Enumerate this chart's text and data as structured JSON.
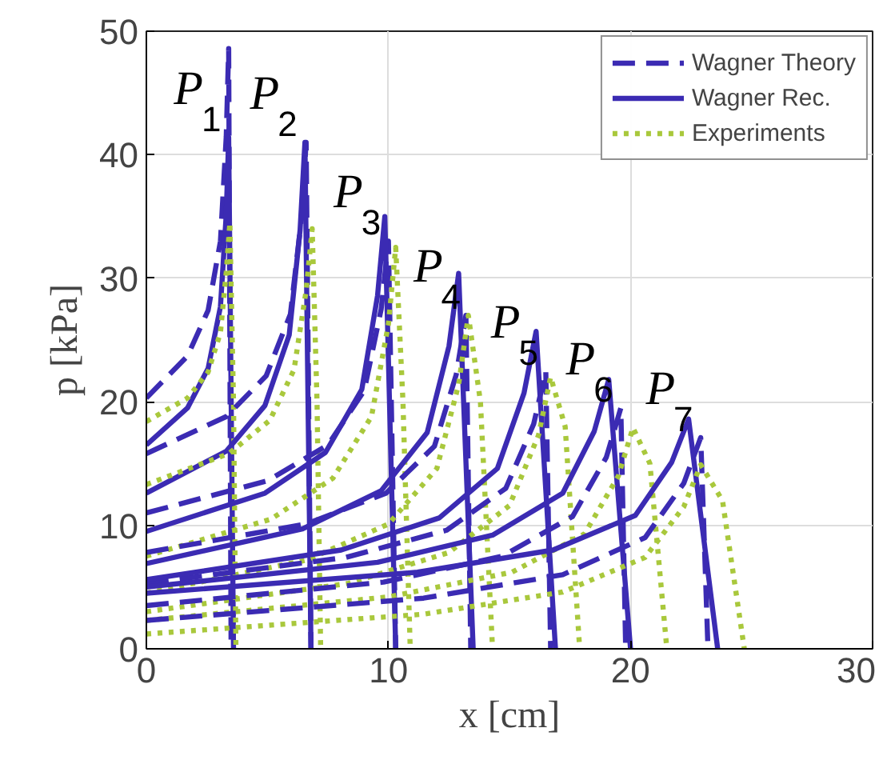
{
  "chart_data": {
    "type": "line",
    "xlabel": "x [cm]",
    "ylabel": "p [kPa]",
    "xlim": [
      0,
      30
    ],
    "ylim": [
      0,
      50
    ],
    "xticks": [
      0,
      10,
      20,
      30
    ],
    "yticks": [
      0,
      10,
      20,
      30,
      40,
      50
    ],
    "grid": true,
    "legend": "top right",
    "series": [
      {
        "name": "Wagner Theory",
        "color": "#3b2bb3",
        "line_style": "dashed",
        "x": [
          0,
          1.7,
          2.55,
          3.06,
          3.3,
          3.4,
          3.5
        ],
        "values": [
          20.3,
          23.7,
          27.4,
          33.0,
          41.5,
          48.6,
          0
        ]
      },
      {
        "name": "Wagner Rec.",
        "color": "#3b2bb3",
        "line_style": "solid",
        "x": [
          0,
          1.7,
          2.55,
          3.06,
          3.3,
          3.4,
          3.6
        ],
        "values": [
          16.5,
          19.5,
          22.7,
          27.7,
          35.2,
          41.4,
          0
        ]
      },
      {
        "name": "Experiments",
        "color": "#a9c83c",
        "line_style": "dotted",
        "x": [
          0,
          1.7,
          2.55,
          3.06,
          3.3,
          3.45,
          3.6,
          3.7
        ],
        "values": [
          18.4,
          20.3,
          22.4,
          25.6,
          30.5,
          34.5,
          20,
          0
        ]
      },
      {
        "color": "#3b2bb3",
        "line_style": "dashed",
        "x": [
          0,
          3.3,
          4.95,
          5.95,
          6.4,
          6.6,
          6.8
        ],
        "values": [
          15.8,
          18.8,
          22.1,
          27.1,
          34.7,
          41,
          0
        ]
      },
      {
        "color": "#3b2bb3",
        "line_style": "solid",
        "x": [
          0,
          3.3,
          4.9,
          5.9,
          6.35,
          6.55,
          6.8
        ],
        "values": [
          12.6,
          16.0,
          19.7,
          25.4,
          33.9,
          41,
          0
        ]
      },
      {
        "color": "#a9c83c",
        "line_style": "dotted",
        "x": [
          0,
          3.4,
          5.1,
          6.1,
          6.6,
          6.85,
          7.05,
          7.2
        ],
        "values": [
          13.3,
          15.8,
          18.5,
          22.6,
          29,
          34,
          20,
          0
        ]
      },
      {
        "color": "#3b2bb3",
        "line_style": "dashed",
        "x": [
          0,
          5,
          7.5,
          9,
          9.7,
          10,
          10.3
        ],
        "values": [
          11,
          13.6,
          16.5,
          20.9,
          27.5,
          33,
          0
        ]
      },
      {
        "color": "#3b2bb3",
        "line_style": "solid",
        "x": [
          0,
          4.9,
          7.4,
          8.9,
          9.55,
          9.85,
          10.3
        ],
        "values": [
          9.5,
          12.6,
          15.9,
          21.0,
          28.6,
          35.0,
          0
        ]
      },
      {
        "color": "#a9c83c",
        "line_style": "dotted",
        "x": [
          0,
          5.15,
          7.7,
          9.3,
          10,
          10.3,
          10.6,
          10.9
        ],
        "values": [
          7.5,
          10.5,
          13.8,
          18.8,
          26.3,
          32.5,
          20,
          0
        ]
      },
      {
        "color": "#3b2bb3",
        "line_style": "dashed",
        "x": [
          0,
          6.6,
          9.9,
          11.9,
          12.8,
          13.2,
          13.4
        ],
        "values": [
          7.8,
          10.1,
          12.6,
          16.4,
          22.2,
          27,
          0
        ]
      },
      {
        "color": "#3b2bb3",
        "line_style": "solid",
        "x": [
          0,
          6.45,
          9.7,
          11.6,
          12.5,
          12.9,
          13.5
        ],
        "values": [
          6.9,
          9.7,
          12.8,
          17.5,
          24.5,
          30.4,
          0
        ]
      },
      {
        "color": "#a9c83c",
        "line_style": "dotted",
        "x": [
          0,
          6.65,
          10,
          12,
          12.9,
          13.3,
          13.8,
          14.3
        ],
        "values": [
          4.5,
          7.2,
          10.1,
          14.6,
          21.4,
          27,
          20,
          0
        ]
      },
      {
        "color": "#3b2bb3",
        "line_style": "dashed",
        "x": [
          0,
          8.25,
          12.4,
          14.85,
          16,
          16.5,
          16.7
        ],
        "values": [
          5.3,
          7.4,
          9.6,
          13.0,
          18.2,
          22.5,
          0
        ]
      },
      {
        "color": "#3b2bb3",
        "line_style": "solid",
        "x": [
          0,
          8.05,
          12.1,
          14.5,
          15.6,
          16.1,
          16.9
        ],
        "values": [
          5.6,
          8.0,
          10.6,
          14.6,
          20.7,
          25.7,
          0
        ]
      },
      {
        "color": "#a9c83c",
        "line_style": "dotted",
        "x": [
          0,
          8.35,
          12.5,
          15,
          16.2,
          16.7,
          17.3,
          17.9
        ],
        "values": [
          3,
          5.3,
          7.8,
          11.6,
          17.3,
          22,
          18,
          0
        ]
      },
      {
        "color": "#3b2bb3",
        "line_style": "dashed",
        "x": [
          0,
          9.8,
          14.7,
          17.6,
          19,
          19.6,
          19.8
        ],
        "values": [
          3.5,
          5.4,
          7.5,
          10.7,
          15.5,
          19.5,
          0
        ]
      },
      {
        "color": "#3b2bb3",
        "line_style": "solid",
        "x": [
          0,
          9.55,
          14.3,
          17.2,
          18.5,
          19.1,
          20
        ],
        "values": [
          5.0,
          7.0,
          9.2,
          12.6,
          17.6,
          21.8,
          0
        ]
      },
      {
        "color": "#a9c83c",
        "line_style": "dotted",
        "x": [
          0,
          10,
          15.1,
          18.1,
          19.5,
          20.1,
          20.8,
          21.5
        ],
        "values": [
          2.3,
          4.2,
          6.2,
          9.3,
          14,
          17.9,
          15,
          0
        ]
      },
      {
        "color": "#3b2bb3",
        "line_style": "dashed",
        "x": [
          0,
          11.45,
          17.2,
          20.6,
          22.2,
          22.9,
          23.2
        ],
        "values": [
          2.3,
          4.1,
          6.0,
          9.0,
          13.4,
          17.1,
          0
        ]
      },
      {
        "color": "#3b2bb3",
        "line_style": "solid",
        "x": [
          0,
          11.2,
          16.8,
          20.2,
          21.7,
          22.4,
          23.6
        ],
        "values": [
          4.5,
          6.2,
          8.0,
          10.8,
          15.1,
          18.6,
          0
        ]
      },
      {
        "color": "#a9c83c",
        "line_style": "dotted",
        "x": [
          0,
          11.45,
          17.2,
          20.6,
          22.2,
          22.9,
          23.8,
          24.7
        ],
        "values": [
          1.2,
          2.8,
          4.6,
          7.4,
          11.5,
          14.9,
          12,
          0
        ]
      }
    ],
    "annotations": [
      "P$_{1}$",
      "P$_{2}$",
      "P$_{3}$",
      "P$_{4}$",
      "P$_{5}$",
      "P$_{6}$",
      "P$_{7}$"
    ]
  }
}
